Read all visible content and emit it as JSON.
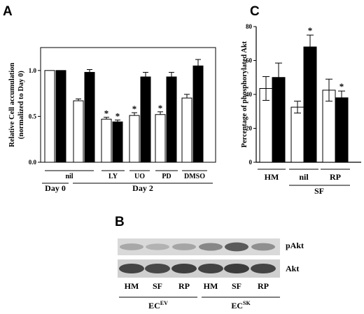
{
  "chart_data": [
    {
      "panel": "A",
      "type": "bar",
      "ylabel": "Relative Cell accumulation (normalized to Day 0)",
      "ylim": [
        0,
        1.25
      ],
      "yticks": [
        "0.0",
        "0.5",
        "1.0"
      ],
      "ytick_values": [
        0,
        0.5,
        1.0
      ],
      "series": [
        {
          "fill": "#ffffff"
        },
        {
          "fill": "#000000"
        }
      ],
      "bars": [
        {
          "group": 0,
          "series": 0,
          "value": 1.0,
          "err": 0.0,
          "star": false
        },
        {
          "group": 0,
          "series": 1,
          "value": 1.0,
          "err": 0.0,
          "star": false
        },
        {
          "group": 1,
          "series": 0,
          "value": 0.67,
          "err": 0.02,
          "star": false
        },
        {
          "group": 1,
          "series": 1,
          "value": 0.98,
          "err": 0.03,
          "star": false
        },
        {
          "group": 2,
          "series": 0,
          "value": 0.47,
          "err": 0.02,
          "star": true
        },
        {
          "group": 2,
          "series": 1,
          "value": 0.44,
          "err": 0.02,
          "star": true
        },
        {
          "group": 3,
          "series": 0,
          "value": 0.51,
          "err": 0.03,
          "star": true
        },
        {
          "group": 3,
          "series": 1,
          "value": 0.93,
          "err": 0.05,
          "star": false
        },
        {
          "group": 4,
          "series": 0,
          "value": 0.52,
          "err": 0.03,
          "star": true
        },
        {
          "group": 4,
          "series": 1,
          "value": 0.93,
          "err": 0.05,
          "star": false
        },
        {
          "group": 5,
          "series": 0,
          "value": 0.7,
          "err": 0.04,
          "star": false
        },
        {
          "group": 5,
          "series": 1,
          "value": 1.05,
          "err": 0.07,
          "star": false
        }
      ],
      "group_labels": [
        "nil",
        "LY",
        "UO",
        "PD",
        "DMSO"
      ],
      "super_labels": [
        "Day 0",
        "Day 2"
      ],
      "star_symbol": "*"
    },
    {
      "panel": "C",
      "type": "bar",
      "ylabel": "Percentage of phosphorylated Akt",
      "ylim": [
        0,
        80
      ],
      "yticks": [
        "0",
        "20",
        "40",
        "60",
        "80"
      ],
      "ytick_values": [
        0,
        20,
        40,
        60,
        80
      ],
      "series": [
        {
          "fill": "#ffffff"
        },
        {
          "fill": "#000000"
        }
      ],
      "bars": [
        {
          "group": 0,
          "series": 0,
          "value": 43.5,
          "err": 7,
          "star": false
        },
        {
          "group": 0,
          "series": 1,
          "value": 50,
          "err": 8.5,
          "star": false
        },
        {
          "group": 1,
          "series": 0,
          "value": 32.5,
          "err": 3.5,
          "star": false
        },
        {
          "group": 1,
          "series": 1,
          "value": 68,
          "err": 7,
          "star": true
        },
        {
          "group": 2,
          "series": 0,
          "value": 42.5,
          "err": 6.5,
          "star": false
        },
        {
          "group": 2,
          "series": 1,
          "value": 38,
          "err": 4,
          "star": true
        }
      ],
      "group_labels": [
        "HM",
        "nil",
        "RP"
      ],
      "super_labels": [
        "SF"
      ],
      "star_symbol": "*"
    }
  ],
  "panels": {
    "a": "A",
    "b": "B",
    "c": "C"
  },
  "blot": {
    "bands": [
      "pAkt",
      "Akt"
    ],
    "lanes": [
      "HM",
      "SF",
      "RP",
      "HM",
      "SF",
      "RP"
    ],
    "pakt_intensity": [
      0.28,
      0.22,
      0.3,
      0.5,
      0.78,
      0.45
    ],
    "akt_intensity": [
      0.85,
      0.82,
      0.88,
      0.86,
      0.9,
      0.85
    ],
    "groups": [
      {
        "base": "EC",
        "sup": "EV"
      },
      {
        "base": "EC",
        "sup": "SK"
      }
    ]
  }
}
